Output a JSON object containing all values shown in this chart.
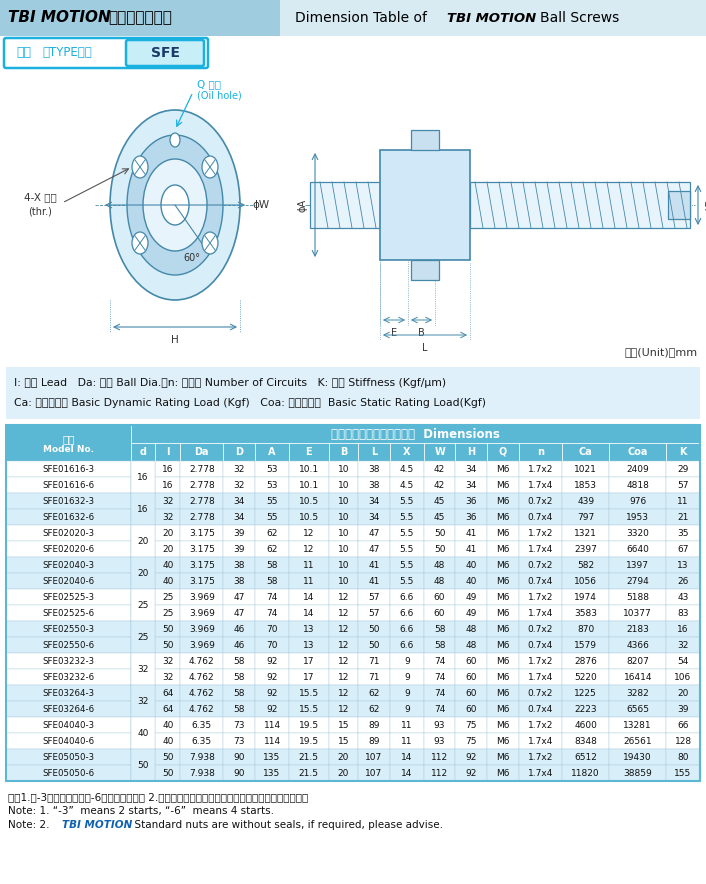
{
  "bg_top_color": "#b8dff0",
  "bg_main_color": "#ffffff",
  "diagram_bg": "#ffffff",
  "legend_bg": "#e8f4fc",
  "header_bg": "#5ab8d4",
  "row_bg_white": "#ffffff",
  "row_bg_blue": "#d8eef8",
  "border_color": "#5ab8d4",
  "cyan_color": "#1ab0e0",
  "line_color": "#4488aa",
  "rows": [
    [
      "SFE01616-3",
      "16",
      "16",
      "2.778",
      "32",
      "53",
      "10.1",
      "10",
      "38",
      "4.5",
      "42",
      "34",
      "M6",
      "1.7x2",
      "1021",
      "2409",
      "29"
    ],
    [
      "SFE01616-6",
      "",
      "16",
      "2.778",
      "32",
      "53",
      "10.1",
      "10",
      "38",
      "4.5",
      "42",
      "34",
      "M6",
      "1.7x4",
      "1853",
      "4818",
      "57"
    ],
    [
      "SFE01632-3",
      "16",
      "32",
      "2.778",
      "34",
      "55",
      "10.5",
      "10",
      "34",
      "5.5",
      "45",
      "36",
      "M6",
      "0.7x2",
      "439",
      "976",
      "11"
    ],
    [
      "SFE01632-6",
      "",
      "32",
      "2.778",
      "34",
      "55",
      "10.5",
      "10",
      "34",
      "5.5",
      "45",
      "36",
      "M6",
      "0.7x4",
      "797",
      "1953",
      "21"
    ],
    [
      "SFE02020-3",
      "20",
      "20",
      "3.175",
      "39",
      "62",
      "12",
      "10",
      "47",
      "5.5",
      "50",
      "41",
      "M6",
      "1.7x2",
      "1321",
      "3320",
      "35"
    ],
    [
      "SFE02020-6",
      "",
      "20",
      "3.175",
      "39",
      "62",
      "12",
      "10",
      "47",
      "5.5",
      "50",
      "41",
      "M6",
      "1.7x4",
      "2397",
      "6640",
      "67"
    ],
    [
      "SFE02040-3",
      "20",
      "40",
      "3.175",
      "38",
      "58",
      "11",
      "10",
      "41",
      "5.5",
      "48",
      "40",
      "M6",
      "0.7x2",
      "582",
      "1397",
      "13"
    ],
    [
      "SFE02040-6",
      "",
      "40",
      "3.175",
      "38",
      "58",
      "11",
      "10",
      "41",
      "5.5",
      "48",
      "40",
      "M6",
      "0.7x4",
      "1056",
      "2794",
      "26"
    ],
    [
      "SFE02525-3",
      "25",
      "25",
      "3.969",
      "47",
      "74",
      "14",
      "12",
      "57",
      "6.6",
      "60",
      "49",
      "M6",
      "1.7x2",
      "1974",
      "5188",
      "43"
    ],
    [
      "SFE02525-6",
      "",
      "25",
      "3.969",
      "47",
      "74",
      "14",
      "12",
      "57",
      "6.6",
      "60",
      "49",
      "M6",
      "1.7x4",
      "3583",
      "10377",
      "83"
    ],
    [
      "SFE02550-3",
      "25",
      "50",
      "3.969",
      "46",
      "70",
      "13",
      "12",
      "50",
      "6.6",
      "58",
      "48",
      "M6",
      "0.7x2",
      "870",
      "2183",
      "16"
    ],
    [
      "SFE02550-6",
      "",
      "50",
      "3.969",
      "46",
      "70",
      "13",
      "12",
      "50",
      "6.6",
      "58",
      "48",
      "M6",
      "0.7x4",
      "1579",
      "4366",
      "32"
    ],
    [
      "SFE03232-3",
      "32",
      "32",
      "4.762",
      "58",
      "92",
      "17",
      "12",
      "71",
      "9",
      "74",
      "60",
      "M6",
      "1.7x2",
      "2876",
      "8207",
      "54"
    ],
    [
      "SFE03232-6",
      "",
      "32",
      "4.762",
      "58",
      "92",
      "17",
      "12",
      "71",
      "9",
      "74",
      "60",
      "M6",
      "1.7x4",
      "5220",
      "16414",
      "106"
    ],
    [
      "SFE03264-3",
      "32",
      "64",
      "4.762",
      "58",
      "92",
      "15.5",
      "12",
      "62",
      "9",
      "74",
      "60",
      "M6",
      "0.7x2",
      "1225",
      "3282",
      "20"
    ],
    [
      "SFE03264-6",
      "",
      "64",
      "4.762",
      "58",
      "92",
      "15.5",
      "12",
      "62",
      "9",
      "74",
      "60",
      "M6",
      "0.7x4",
      "2223",
      "6565",
      "39"
    ],
    [
      "SFE04040-3",
      "40",
      "40",
      "6.35",
      "73",
      "114",
      "19.5",
      "15",
      "89",
      "11",
      "93",
      "75",
      "M6",
      "1.7x2",
      "4600",
      "13281",
      "66"
    ],
    [
      "SFE04040-6",
      "",
      "40",
      "6.35",
      "73",
      "114",
      "19.5",
      "15",
      "89",
      "11",
      "93",
      "75",
      "M6",
      "1.7x4",
      "8348",
      "26561",
      "128"
    ],
    [
      "SFE05050-3",
      "50",
      "50",
      "7.938",
      "90",
      "135",
      "21.5",
      "20",
      "107",
      "14",
      "112",
      "92",
      "M6",
      "1.7x2",
      "6512",
      "19430",
      "80"
    ],
    [
      "SFE05050-6",
      "",
      "50",
      "7.938",
      "90",
      "135",
      "21.5",
      "20",
      "107",
      "14",
      "112",
      "92",
      "M6",
      "1.7x4",
      "11820",
      "38859",
      "155"
    ]
  ]
}
